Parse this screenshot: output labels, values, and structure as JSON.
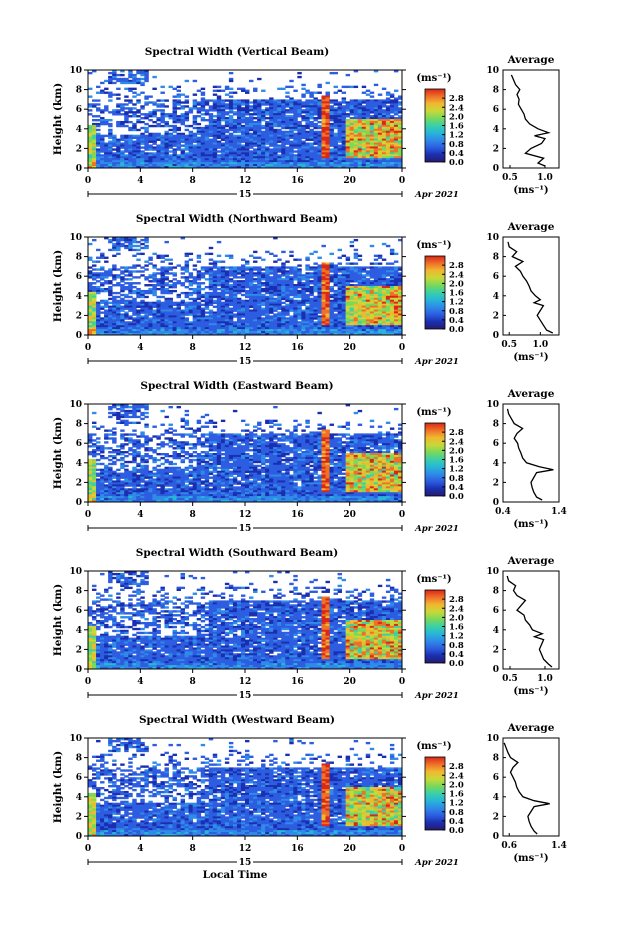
{
  "chart_data": {
    "type": "heatmap",
    "x_title": "Local Time",
    "date_label": "Apr 2021",
    "day_label": "15",
    "average_title": "Average",
    "unit_label": "(ms⁻¹)",
    "ylabel": "Height (km)",
    "x_ticks": [
      "0",
      "4",
      "8",
      "12",
      "16",
      "20",
      "0"
    ],
    "y_ticks": [
      "0",
      "2",
      "4",
      "6",
      "8",
      "10"
    ],
    "colorbar_ticks": [
      "0.0",
      "0.4",
      "0.8",
      "1.2",
      "1.6",
      "2.0",
      "2.4",
      "2.8"
    ],
    "colorbar_range": [
      0.0,
      3.2
    ],
    "panels": [
      {
        "title": "Spectral Width (Vertical Beam)",
        "avg_xticks": [
          "0.5",
          "1.0"
        ],
        "avg_xlim": [
          0.4,
          1.2
        ],
        "avg_profile": {
          "height": [
            0.2,
            0.5,
            1.0,
            1.5,
            2.0,
            2.5,
            3.0,
            3.3,
            3.6,
            4.0,
            4.5,
            5.0,
            5.5,
            6.0,
            6.5,
            7.0,
            7.5,
            8.0,
            8.5,
            9.0,
            9.5
          ],
          "value": [
            1.0,
            0.9,
            0.98,
            0.72,
            0.8,
            0.95,
            1.0,
            0.85,
            1.05,
            0.9,
            0.78,
            0.72,
            0.7,
            0.66,
            0.62,
            0.63,
            0.6,
            0.64,
            0.58,
            0.55,
            0.52
          ]
        }
      },
      {
        "title": "Spectral Width (Northward Beam)",
        "avg_xticks": [
          "0.5",
          "1.0"
        ],
        "avg_xlim": [
          0.4,
          1.3
        ],
        "avg_profile": {
          "height": [
            0.2,
            0.5,
            1.0,
            1.5,
            2.0,
            2.5,
            3.0,
            3.3,
            3.6,
            4.0,
            4.5,
            5.0,
            5.5,
            6.0,
            6.5,
            7.0,
            7.5,
            8.0,
            8.5,
            9.0,
            9.5
          ],
          "value": [
            1.2,
            1.1,
            1.05,
            1.0,
            0.95,
            1.0,
            1.05,
            0.9,
            1.0,
            0.92,
            0.85,
            0.82,
            0.78,
            0.72,
            0.68,
            0.6,
            0.72,
            0.55,
            0.62,
            0.5,
            0.48
          ]
        }
      },
      {
        "title": "Spectral Width (Eastward Beam)",
        "avg_xticks": [
          "0.4",
          "1.4"
        ],
        "avg_xlim": [
          0.4,
          1.4
        ],
        "avg_profile": {
          "height": [
            0.2,
            0.5,
            1.0,
            1.5,
            2.0,
            2.5,
            3.0,
            3.3,
            3.6,
            4.0,
            4.5,
            5.0,
            5.5,
            6.0,
            6.5,
            7.0,
            7.5,
            8.0,
            8.5,
            9.0,
            9.5
          ],
          "value": [
            1.1,
            1.0,
            0.95,
            0.92,
            0.9,
            0.95,
            1.0,
            1.3,
            1.05,
            0.82,
            0.75,
            0.72,
            0.68,
            0.66,
            0.6,
            0.65,
            0.75,
            0.6,
            0.55,
            0.5,
            0.48
          ]
        }
      },
      {
        "title": "Spectral Width (Southward Beam)",
        "avg_xticks": [
          "0.5",
          "1.0"
        ],
        "avg_xlim": [
          0.4,
          1.2
        ],
        "avg_profile": {
          "height": [
            0.2,
            0.5,
            1.0,
            1.5,
            2.0,
            2.5,
            3.0,
            3.3,
            3.6,
            4.0,
            4.5,
            5.0,
            5.5,
            6.0,
            6.5,
            7.0,
            7.5,
            8.0,
            8.5,
            9.0,
            9.5
          ],
          "value": [
            1.1,
            1.05,
            0.98,
            0.95,
            0.92,
            0.95,
            0.98,
            0.85,
            0.96,
            0.82,
            0.78,
            0.72,
            0.7,
            0.6,
            0.66,
            0.72,
            0.6,
            0.55,
            0.58,
            0.48,
            0.46
          ]
        }
      },
      {
        "title": "Spectral Width (Westward Beam)",
        "avg_xticks": [
          "0.6",
          "1.4"
        ],
        "avg_xlim": [
          0.5,
          1.4
        ],
        "avg_profile": {
          "height": [
            0.2,
            0.5,
            1.0,
            1.5,
            2.0,
            2.5,
            3.0,
            3.3,
            3.6,
            4.0,
            4.5,
            5.0,
            5.5,
            6.0,
            6.5,
            7.0,
            7.5,
            8.0,
            8.5,
            9.0,
            9.5
          ],
          "value": [
            1.05,
            1.0,
            0.95,
            0.92,
            0.9,
            0.95,
            1.0,
            1.25,
            1.0,
            0.82,
            0.76,
            0.72,
            0.7,
            0.66,
            0.62,
            0.66,
            0.74,
            0.62,
            0.58,
            0.55,
            0.52
          ]
        }
      }
    ]
  },
  "colors": {
    "colormap": [
      "#2a1a6e",
      "#1a2fb0",
      "#2d5de0",
      "#2f8be8",
      "#27b6d8",
      "#3ad0a8",
      "#7ad85a",
      "#c8d838",
      "#f0b830",
      "#f07028",
      "#d82818"
    ]
  }
}
